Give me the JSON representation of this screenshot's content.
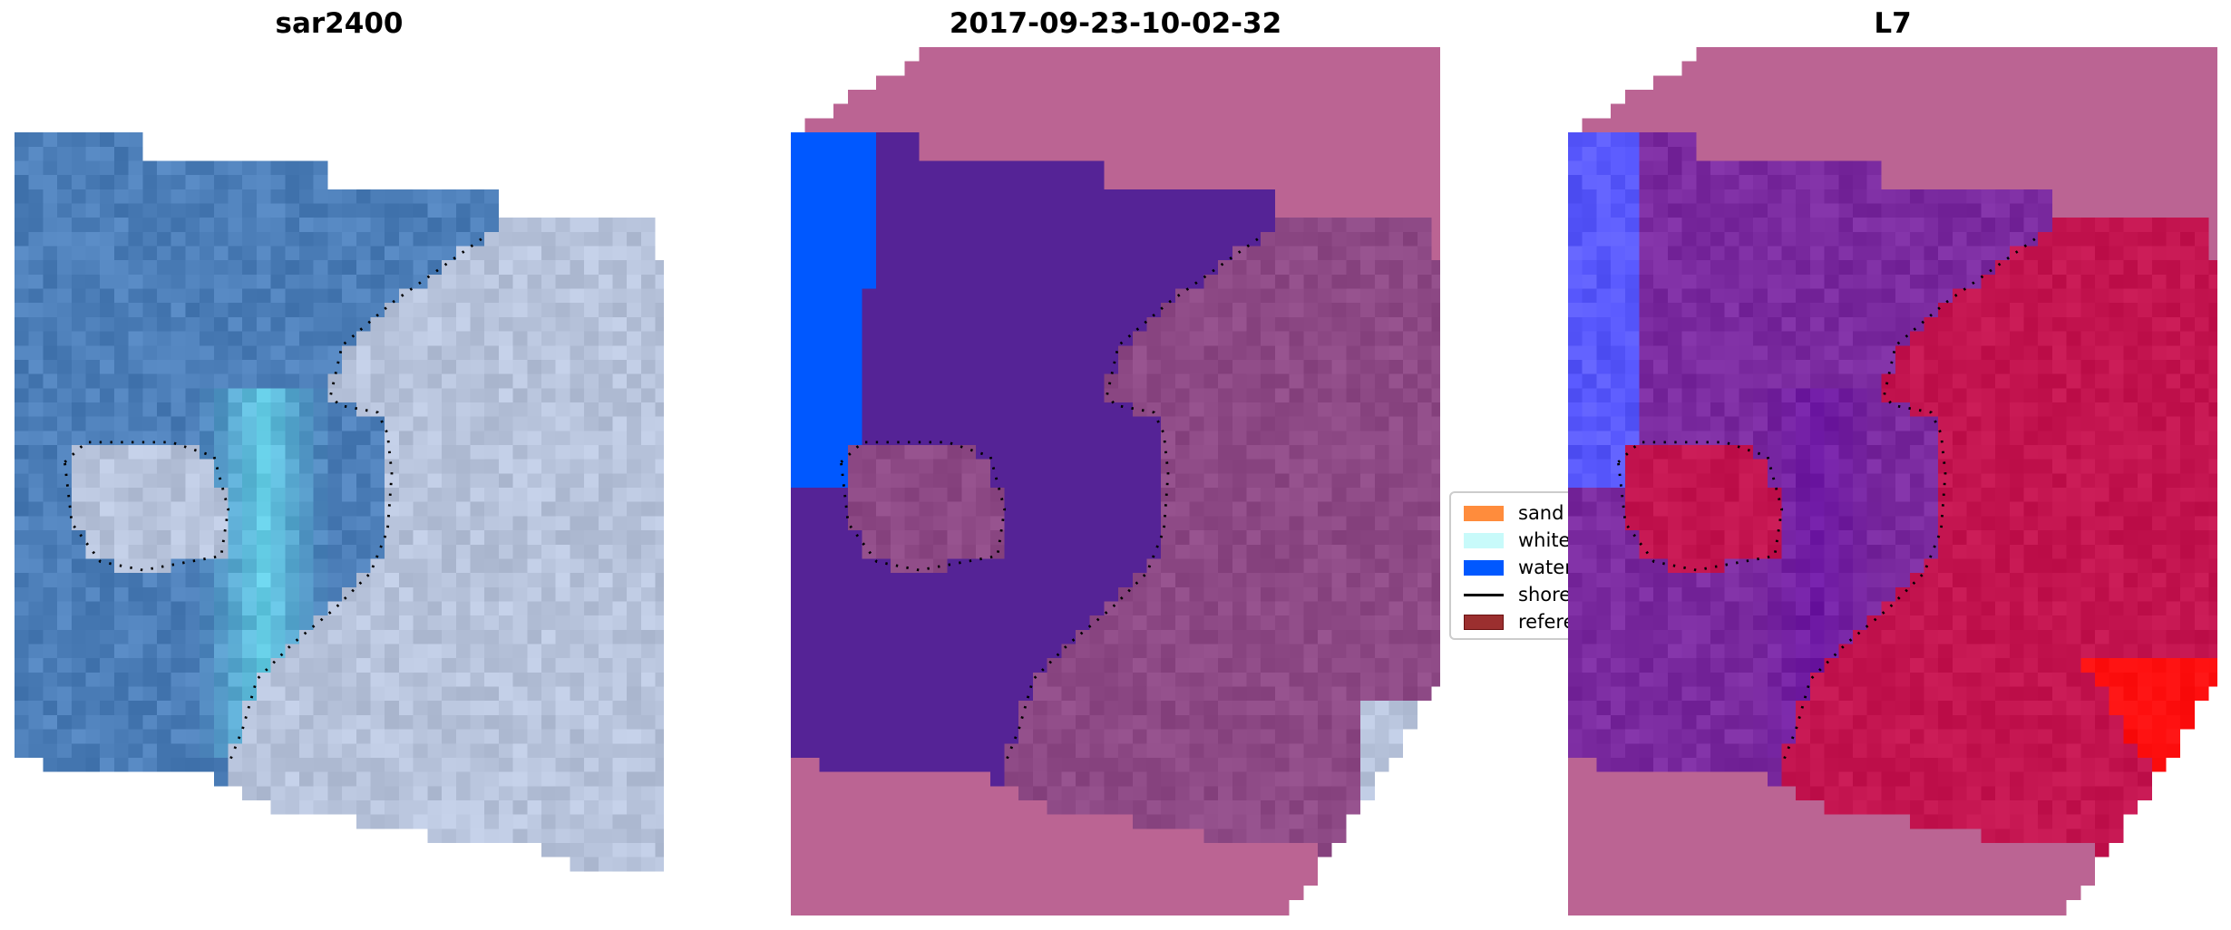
{
  "panels": [
    {
      "title": "sar2400"
    },
    {
      "title": "2017-09-23-10-02-32"
    },
    {
      "title": "L7"
    }
  ],
  "legend": {
    "entries": [
      {
        "label": "sand",
        "color": "#ff8c3c",
        "kind": "patch"
      },
      {
        "label": "whitew",
        "color": "#c8fafa",
        "kind": "patch"
      },
      {
        "label": "water",
        "color": "#0058ff",
        "kind": "patch"
      },
      {
        "label": "shorel",
        "color": "#000000",
        "kind": "line"
      },
      {
        "label": "referer",
        "color": "#9b2f2f",
        "kind": "patch"
      }
    ]
  },
  "colors": {
    "rgb_water": "#4d7fb9",
    "rgb_surf": "#6ae0f0",
    "rgb_land": "#b8c4dc",
    "class_nodata": "#bb6493",
    "class_water": "#552396",
    "class_land": "#8e4a86",
    "class_blue": "#0058ff",
    "idx_water": "#7b2ba0",
    "idx_land": "#c41550",
    "idx_blue": "#5a5aff",
    "idx_hot": "#ff1010"
  }
}
